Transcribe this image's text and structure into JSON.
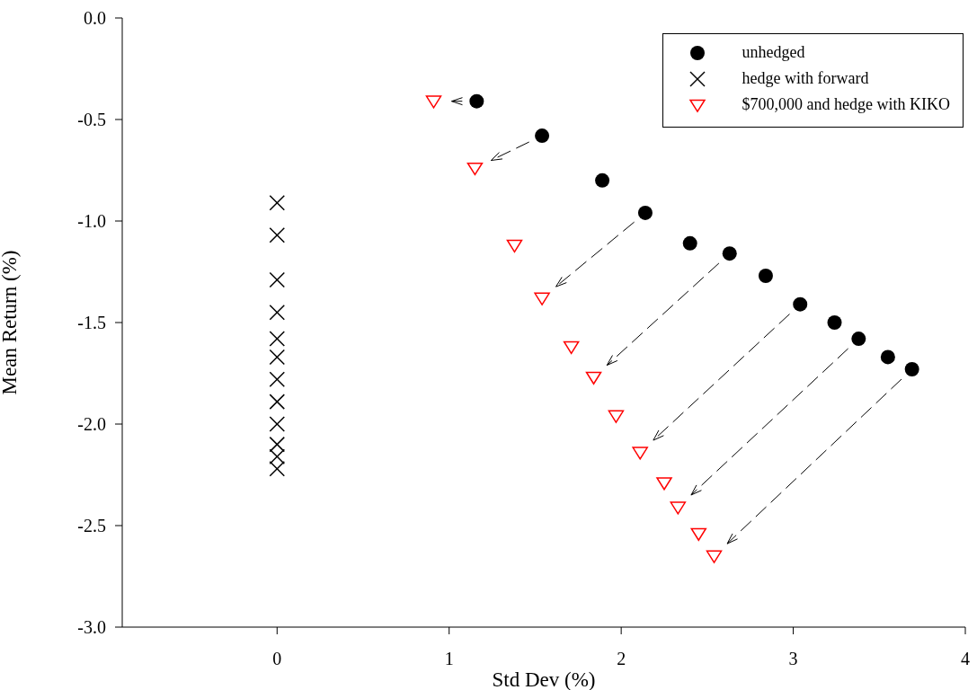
{
  "chart_data": {
    "type": "scatter",
    "xlabel": "Std Dev (%)",
    "ylabel": "Mean Return (%)",
    "xlim": [
      -0.9,
      4
    ],
    "xticks": [
      0,
      1,
      2,
      3,
      4
    ],
    "ylim": [
      -3,
      0
    ],
    "yticks": [
      {
        "value": -3,
        "label": "-3.0"
      },
      {
        "value": -2.5,
        "label": "-2.5"
      },
      {
        "value": -2,
        "label": "-2.0"
      },
      {
        "value": -1.5,
        "label": "-1.5"
      },
      {
        "value": -1,
        "label": "-1.0"
      },
      {
        "value": -0.5,
        "label": "-0.5"
      },
      {
        "value": 0,
        "label": "0.0"
      }
    ],
    "grid": false,
    "legend": "top right",
    "series": [
      {
        "name": "unhedged",
        "color": "#000000",
        "marker": "circle",
        "x": [
          1.16,
          1.54,
          1.89,
          2.14,
          2.4,
          2.63,
          2.84,
          3.04,
          3.24,
          3.38,
          3.55,
          3.69
        ],
        "values": [
          -0.41,
          -0.58,
          -0.8,
          -0.96,
          -1.11,
          -1.16,
          -1.27,
          -1.41,
          -1.5,
          -1.58,
          -1.67,
          -1.73
        ]
      },
      {
        "name": "hedge with forward",
        "color": "#000000",
        "marker": "cross",
        "x": [
          0,
          0,
          0,
          0,
          0,
          0,
          0,
          0,
          0,
          0,
          0,
          0
        ],
        "values": [
          -0.91,
          -1.07,
          -1.29,
          -1.45,
          -1.58,
          -1.67,
          -1.78,
          -1.89,
          -2.0,
          -2.1,
          -2.16,
          -2.22
        ]
      },
      {
        "name": "$700,000 and hedge with KIKO",
        "color": "#ff0000",
        "marker": "triangle",
        "x": [
          0.91,
          1.15,
          1.38,
          1.54,
          1.71,
          1.84,
          1.97,
          2.11,
          2.25,
          2.33,
          2.45,
          2.54
        ],
        "values": [
          -0.41,
          -0.74,
          -1.12,
          -1.38,
          -1.62,
          -1.77,
          -1.96,
          -2.14,
          -2.29,
          -2.41,
          -2.54,
          -2.65
        ]
      }
    ]
  }
}
